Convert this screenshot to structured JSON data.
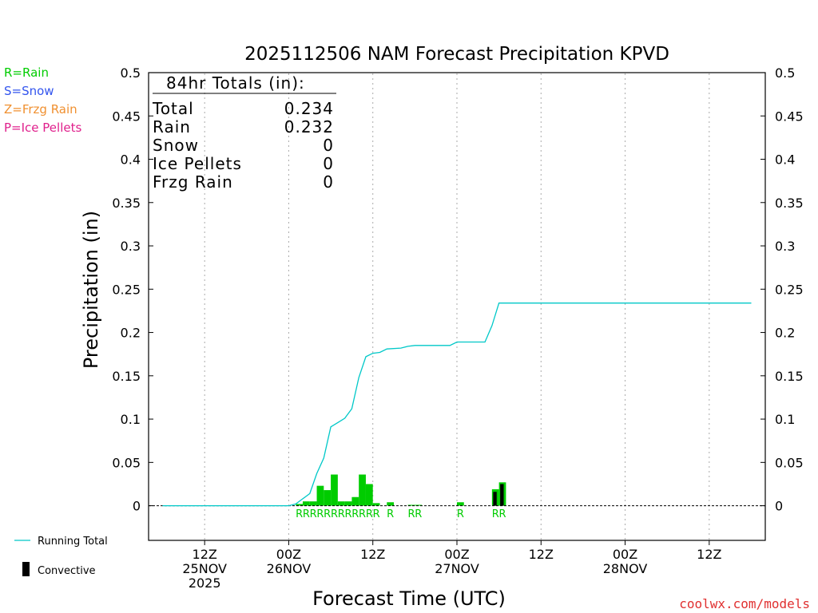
{
  "chart_data": {
    "type": "bar+line",
    "title": "2025112506 NAM Forecast Precipitation KPVD",
    "ylabel": "Precipitation  (in)",
    "xlabel": "Forecast Time (UTC)",
    "ylim": [
      -0.04,
      0.5
    ],
    "xlim_hours": [
      -2,
      86
    ],
    "y_ticks": [
      0,
      0.05,
      0.1,
      0.15,
      0.2,
      0.25,
      0.3,
      0.35,
      0.4,
      0.45,
      0.5
    ],
    "y_tick_labels": [
      "0",
      "0.05",
      "0.1",
      "0.15",
      "0.2",
      "0.25",
      "0.3",
      "0.35",
      "0.4",
      "0.45",
      "0.5"
    ],
    "x_ticks": [
      {
        "hour": 6,
        "lines": [
          "12Z",
          "25NOV",
          "2025"
        ]
      },
      {
        "hour": 18,
        "lines": [
          "00Z",
          "26NOV"
        ]
      },
      {
        "hour": 30,
        "lines": [
          "12Z"
        ]
      },
      {
        "hour": 42,
        "lines": [
          "00Z",
          "27NOV"
        ]
      },
      {
        "hour": 54,
        "lines": [
          "12Z"
        ]
      },
      {
        "hour": 66,
        "lines": [
          "00Z",
          "28NOV"
        ]
      },
      {
        "hour": 78,
        "lines": [
          "12Z"
        ]
      }
    ],
    "legend_types": [
      {
        "label": "R=Rain",
        "color": "#00cc00"
      },
      {
        "label": "S=Snow",
        "color": "#3355ee"
      },
      {
        "label": "Z=Frzg Rain",
        "color": "#f09030"
      },
      {
        "label": "P=Ice Pellets",
        "color": "#e0208c"
      }
    ],
    "legend_series": [
      {
        "label": "Running Total",
        "color": "#00c8c8"
      },
      {
        "label": "Convective",
        "color": "#000000"
      }
    ],
    "totals": {
      "heading": "84hr Totals (in):",
      "rows": [
        {
          "label": "Total",
          "value": "0.234"
        },
        {
          "label": "Rain",
          "value": "0.232"
        },
        {
          "label": "Snow",
          "value": "0"
        },
        {
          "label": "Ice Pellets",
          "value": "0"
        },
        {
          "label": "Frzg Rain",
          "value": "0"
        }
      ]
    },
    "hourly_precip": [
      {
        "hour": 19,
        "value": 0.002,
        "convective": 0,
        "type": "R"
      },
      {
        "hour": 20,
        "value": 0.005,
        "convective": 0,
        "type": "R"
      },
      {
        "hour": 21,
        "value": 0.005,
        "convective": 0,
        "type": "R"
      },
      {
        "hour": 22,
        "value": 0.023,
        "convective": 0,
        "type": "R"
      },
      {
        "hour": 23,
        "value": 0.018,
        "convective": 0,
        "type": "R"
      },
      {
        "hour": 24,
        "value": 0.036,
        "convective": 0,
        "type": "R"
      },
      {
        "hour": 25,
        "value": 0.005,
        "convective": 0,
        "type": "R"
      },
      {
        "hour": 26,
        "value": 0.005,
        "convective": 0,
        "type": "R"
      },
      {
        "hour": 27,
        "value": 0.01,
        "convective": 0,
        "type": "R"
      },
      {
        "hour": 28,
        "value": 0.036,
        "convective": 0,
        "type": "R"
      },
      {
        "hour": 29,
        "value": 0.025,
        "convective": 0,
        "type": "R"
      },
      {
        "hour": 30,
        "value": 0.003,
        "convective": 0,
        "type": "R"
      },
      {
        "hour": 32,
        "value": 0.004,
        "convective": 0,
        "type": "R"
      },
      {
        "hour": 35,
        "value": 0.001,
        "convective": 0,
        "type": "R"
      },
      {
        "hour": 36,
        "value": 0.001,
        "convective": 0,
        "type": "R"
      },
      {
        "hour": 42,
        "value": 0.004,
        "convective": 0,
        "type": "R"
      },
      {
        "hour": 47,
        "value": 0.019,
        "convective": 0.016,
        "type": "R"
      },
      {
        "hour": 48,
        "value": 0.027,
        "convective": 0.025,
        "type": "R"
      }
    ],
    "type_labels": [
      {
        "hour": 19.5,
        "text": "R"
      },
      {
        "hour": 20.5,
        "text": "R"
      },
      {
        "hour": 21.5,
        "text": "R"
      },
      {
        "hour": 22.5,
        "text": "R"
      },
      {
        "hour": 23.5,
        "text": "R"
      },
      {
        "hour": 24.5,
        "text": "R"
      },
      {
        "hour": 25.5,
        "text": "R"
      },
      {
        "hour": 26.5,
        "text": "R"
      },
      {
        "hour": 27.5,
        "text": "R"
      },
      {
        "hour": 28.5,
        "text": "R"
      },
      {
        "hour": 29.5,
        "text": "R"
      },
      {
        "hour": 30.5,
        "text": "R"
      },
      {
        "hour": 32.5,
        "text": "R"
      },
      {
        "hour": 35.5,
        "text": "R"
      },
      {
        "hour": 36.5,
        "text": "R"
      },
      {
        "hour": 42.5,
        "text": "R"
      },
      {
        "hour": 47.5,
        "text": "R"
      },
      {
        "hour": 48.5,
        "text": "R"
      }
    ],
    "running_total": [
      [
        0,
        0
      ],
      [
        18,
        0
      ],
      [
        19,
        0.002
      ],
      [
        20,
        0.008
      ],
      [
        21,
        0.014
      ],
      [
        22,
        0.037
      ],
      [
        23,
        0.055
      ],
      [
        24,
        0.091
      ],
      [
        25,
        0.096
      ],
      [
        26,
        0.101
      ],
      [
        27,
        0.112
      ],
      [
        28,
        0.148
      ],
      [
        29,
        0.172
      ],
      [
        30,
        0.176
      ],
      [
        31,
        0.177
      ],
      [
        32,
        0.181
      ],
      [
        34,
        0.182
      ],
      [
        35,
        0.184
      ],
      [
        36,
        0.185
      ],
      [
        41,
        0.185
      ],
      [
        42,
        0.189
      ],
      [
        46,
        0.189
      ],
      [
        47,
        0.208
      ],
      [
        48,
        0.234
      ],
      [
        84,
        0.234
      ]
    ]
  },
  "footer": {
    "credit": "coolwx.com/models"
  },
  "colors": {
    "bar": "#00cc00",
    "convective": "#000000",
    "running_total": "#00c8c8",
    "grid": "#aaaaaa",
    "credit": "#e03030"
  }
}
